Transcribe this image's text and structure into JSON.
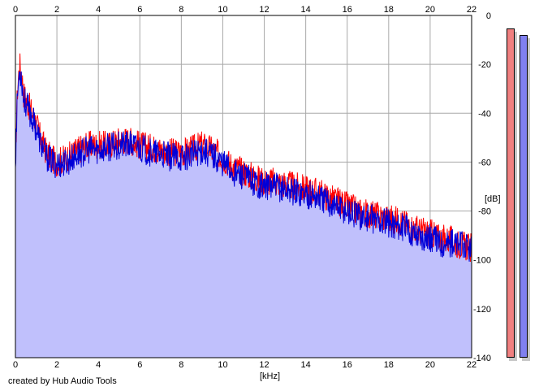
{
  "app": {
    "credit": "created by Hub Audio Tools"
  },
  "colors": {
    "fill": "#c0c0fc",
    "left_channel": "#ff0000",
    "right_channel": "#0000d8",
    "grid": "#a8a8a8",
    "meter_left": "#f08080",
    "meter_right": "#8080f0"
  },
  "meters": {
    "left_level_db": -5,
    "right_level_db": -8
  },
  "chart_data": {
    "type": "area",
    "title": "",
    "xlabel": "[kHz]",
    "ylabel": "[dB]",
    "xlim": [
      0,
      22
    ],
    "ylim": [
      -140,
      0
    ],
    "x_ticks": [
      "0",
      "2",
      "4",
      "6",
      "8",
      "10",
      "12",
      "14",
      "16",
      "18",
      "20",
      "22"
    ],
    "y_ticks": [
      "0",
      "-20",
      "-40",
      "-60",
      "-80",
      "-100",
      "-120",
      "-140"
    ],
    "grid": true,
    "series": [
      {
        "color": "#ff0000",
        "x": [
          0,
          0.1,
          0.2,
          0.3,
          0.4,
          0.6,
          0.8,
          1.0,
          1.2,
          1.5,
          1.8,
          2.0,
          2.5,
          3.0,
          3.5,
          4.0,
          4.5,
          5.0,
          5.5,
          6.0,
          6.5,
          7.0,
          7.5,
          8.0,
          8.5,
          9.0,
          9.5,
          10.0,
          10.5,
          11.0,
          11.5,
          12.0,
          12.5,
          13.0,
          13.5,
          14.0,
          14.5,
          15.0,
          15.5,
          16.0,
          16.5,
          17.0,
          17.5,
          18.0,
          18.5,
          19.0,
          19.5,
          20.0,
          20.5,
          21.0,
          21.5,
          22.0
        ],
        "values": [
          -58,
          -30,
          -20,
          -24,
          -32,
          -36,
          -40,
          -44,
          -50,
          -56,
          -59,
          -60,
          -58,
          -55,
          -53,
          -53,
          -53,
          -51,
          -51,
          -53,
          -54,
          -55,
          -56,
          -56,
          -55,
          -53,
          -55,
          -58,
          -62,
          -64,
          -66,
          -68,
          -68,
          -69,
          -70,
          -71,
          -72,
          -74,
          -76,
          -78,
          -80,
          -81,
          -82,
          -83,
          -84,
          -86,
          -88,
          -89,
          -91,
          -92,
          -94,
          -95
        ]
      },
      {
        "color": "#0000d8",
        "x": [
          0,
          0.1,
          0.2,
          0.3,
          0.4,
          0.6,
          0.8,
          1.0,
          1.2,
          1.5,
          1.8,
          2.0,
          2.5,
          3.0,
          3.5,
          4.0,
          4.5,
          5.0,
          5.5,
          6.0,
          6.5,
          7.0,
          7.5,
          8.0,
          8.5,
          9.0,
          9.5,
          10.0,
          10.5,
          11.0,
          11.5,
          12.0,
          12.5,
          13.0,
          13.5,
          14.0,
          14.5,
          15.0,
          15.5,
          16.0,
          16.5,
          17.0,
          17.5,
          18.0,
          18.5,
          19.0,
          19.5,
          20.0,
          20.5,
          21.0,
          21.5,
          22.0
        ],
        "values": [
          -60,
          -32,
          -22,
          -26,
          -34,
          -38,
          -42,
          -46,
          -52,
          -58,
          -60,
          -61,
          -60,
          -57,
          -55,
          -55,
          -54,
          -53,
          -53,
          -54,
          -56,
          -57,
          -58,
          -58,
          -57,
          -55,
          -57,
          -60,
          -64,
          -66,
          -68,
          -70,
          -70,
          -71,
          -72,
          -73,
          -74,
          -76,
          -78,
          -80,
          -82,
          -83,
          -84,
          -85,
          -86,
          -88,
          -90,
          -91,
          -93,
          -93,
          -94,
          -96
        ]
      }
    ]
  }
}
